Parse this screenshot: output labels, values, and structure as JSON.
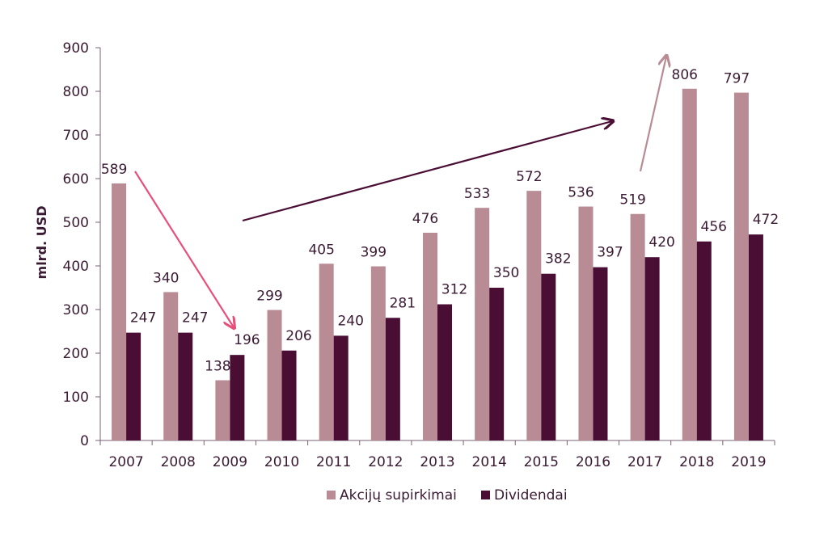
{
  "chart_data": {
    "type": "bar",
    "categories": [
      "2007",
      "2008",
      "2009",
      "2010",
      "2011",
      "2012",
      "2013",
      "2014",
      "2015",
      "2016",
      "2017",
      "2018",
      "2019"
    ],
    "series": [
      {
        "name": "Akcijų supirkimai",
        "color": "#b98c95",
        "values": [
          589,
          340,
          138,
          299,
          405,
          399,
          476,
          533,
          572,
          536,
          519,
          806,
          797
        ]
      },
      {
        "name": "Dividendai",
        "color": "#4a0e35",
        "values": [
          247,
          247,
          196,
          206,
          240,
          281,
          312,
          350,
          382,
          397,
          420,
          456,
          472
        ]
      }
    ],
    "ylabel": "mlrd. USD",
    "ylim": [
      0,
      900
    ],
    "yticks": [
      0,
      100,
      200,
      300,
      400,
      500,
      600,
      700,
      800,
      900
    ],
    "legend_position": "bottom",
    "grid": false,
    "arrows": [
      {
        "name": "decline-arrow",
        "color": "#e8507a",
        "from": {
          "x": "2007",
          "y": 589
        },
        "to": {
          "x": "2009",
          "y": 196
        }
      },
      {
        "name": "growth-arrow",
        "color": "#4a0e35",
        "from": {
          "x": "2009",
          "y": 500
        },
        "to": {
          "x": "2017",
          "y": 725
        }
      },
      {
        "name": "jump-arrow",
        "color": "#b98c95",
        "from": {
          "x": "2017",
          "y": 610
        },
        "to": {
          "x": "2018",
          "y": 880
        }
      }
    ]
  }
}
